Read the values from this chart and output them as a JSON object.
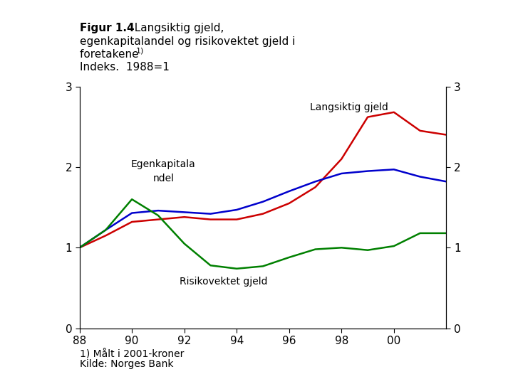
{
  "title_bold": "Figur 1.4",
  "title_rest_line1": "  Langsiktig gjeld,",
  "title_line2": "egenkapitalandel og risikovektet gjeld i",
  "title_line3": "foretakene ",
  "title_super": "1)",
  "title_line4": "Indeks.  1988=1",
  "footnote_line1": "1) Malt i 2001-kroner",
  "footnote_line2": "Kilde: Norges Bank",
  "years": [
    1988,
    1989,
    1990,
    1991,
    1992,
    1993,
    1994,
    1995,
    1996,
    1997,
    1998,
    1999,
    2000,
    2001,
    2002
  ],
  "langsiktig_gjeld": [
    1.0,
    1.15,
    1.32,
    1.35,
    1.38,
    1.35,
    1.35,
    1.42,
    1.55,
    1.75,
    2.1,
    2.62,
    2.68,
    2.45,
    2.4
  ],
  "egenkapitalandel": [
    1.0,
    1.22,
    1.43,
    1.46,
    1.44,
    1.42,
    1.47,
    1.57,
    1.7,
    1.82,
    1.92,
    1.95,
    1.97,
    1.88,
    1.82
  ],
  "risikovektet_gjeld": [
    1.0,
    1.22,
    1.6,
    1.4,
    1.05,
    0.78,
    0.74,
    0.77,
    0.88,
    0.98,
    1.0,
    0.97,
    1.02,
    1.18,
    1.18
  ],
  "color_langsiktig": "#cc0000",
  "color_egenkapital": "#0000cc",
  "color_risikovektet": "#008000",
  "ylim": [
    0,
    3
  ],
  "yticks": [
    0,
    1,
    2,
    3
  ],
  "xticks": [
    1988,
    1990,
    1992,
    1994,
    1996,
    1998,
    2000
  ],
  "xticklabels": [
    "88",
    "90",
    "92",
    "94",
    "96",
    "98",
    "00"
  ],
  "background_color": "#ffffff",
  "label_langsiktig": "Langsiktig gjeld",
  "label_egenkapital_line1": "Egenkapitala",
  "label_egenkapital_line2": "ndel",
  "label_risikovektet": "Risikovektet gjeld"
}
